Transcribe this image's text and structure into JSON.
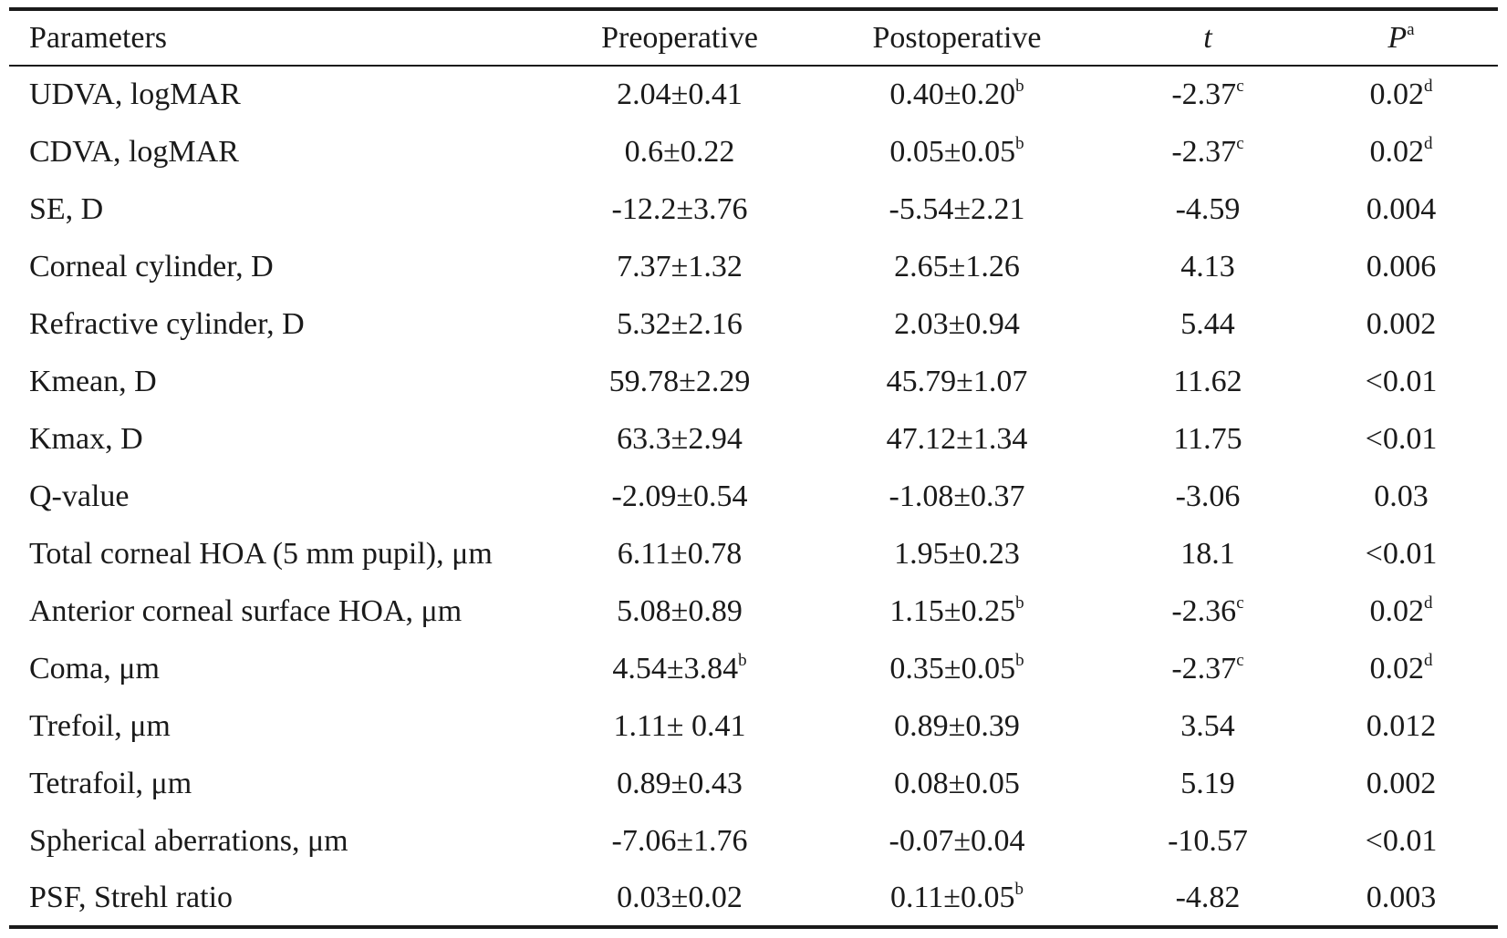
{
  "table": {
    "headers": [
      {
        "text": "Parameters",
        "sup": ""
      },
      {
        "text": "Preoperative",
        "sup": ""
      },
      {
        "text": "Postoperative",
        "sup": ""
      },
      {
        "text": "t",
        "sup": ""
      },
      {
        "text": "P",
        "sup": "a"
      }
    ],
    "rows": [
      {
        "param": "UDVA, logMAR",
        "pre": "2.04±0.41",
        "pre_sup": "",
        "post": "0.40±0.20",
        "post_sup": "b",
        "t": "-2.37",
        "t_sup": "c",
        "p": "0.02",
        "p_sup": "d"
      },
      {
        "param": "CDVA, logMAR",
        "pre": "0.6±0.22",
        "pre_sup": "",
        "post": "0.05±0.05",
        "post_sup": "b",
        "t": "-2.37",
        "t_sup": "c",
        "p": "0.02",
        "p_sup": "d"
      },
      {
        "param": "SE, D",
        "pre": "-12.2±3.76",
        "pre_sup": "",
        "post": "-5.54±2.21",
        "post_sup": "",
        "t": "-4.59",
        "t_sup": "",
        "p": "0.004",
        "p_sup": ""
      },
      {
        "param": "Corneal cylinder, D",
        "pre": "7.37±1.32",
        "pre_sup": "",
        "post": "2.65±1.26",
        "post_sup": "",
        "t": "4.13",
        "t_sup": "",
        "p": "0.006",
        "p_sup": ""
      },
      {
        "param": "Refractive cylinder, D",
        "pre": "5.32±2.16",
        "pre_sup": "",
        "post": "2.03±0.94",
        "post_sup": "",
        "t": "5.44",
        "t_sup": "",
        "p": "0.002",
        "p_sup": ""
      },
      {
        "param": "Kmean, D",
        "pre": "59.78±2.29",
        "pre_sup": "",
        "post": "45.79±1.07",
        "post_sup": "",
        "t": "11.62",
        "t_sup": "",
        "p": "<0.01",
        "p_sup": ""
      },
      {
        "param": "Kmax, D",
        "pre": "63.3±2.94",
        "pre_sup": "",
        "post": "47.12±1.34",
        "post_sup": "",
        "t": "11.75",
        "t_sup": "",
        "p": "<0.01",
        "p_sup": ""
      },
      {
        "param": "Q-value",
        "pre": "-2.09±0.54",
        "pre_sup": "",
        "post": "-1.08±0.37",
        "post_sup": "",
        "t": "-3.06",
        "t_sup": "",
        "p": "0.03",
        "p_sup": ""
      },
      {
        "param": "Total corneal HOA (5 mm pupil), μm",
        "pre": "6.11±0.78",
        "pre_sup": "",
        "post": "1.95±0.23",
        "post_sup": "",
        "t": "18.1",
        "t_sup": "",
        "p": "<0.01",
        "p_sup": ""
      },
      {
        "param": "Anterior corneal surface HOA, μm",
        "pre": "5.08±0.89",
        "pre_sup": "",
        "post": "1.15±0.25",
        "post_sup": "b",
        "t": "-2.36",
        "t_sup": "c",
        "p": "0.02",
        "p_sup": "d"
      },
      {
        "param": "Coma, μm",
        "pre": "4.54±3.84",
        "pre_sup": "b",
        "post": "0.35±0.05",
        "post_sup": "b",
        "t": "-2.37",
        "t_sup": "c",
        "p": "0.02",
        "p_sup": "d"
      },
      {
        "param": "Trefoil, μm",
        "pre": "1.11± 0.41",
        "pre_sup": "",
        "post": "0.89±0.39",
        "post_sup": "",
        "t": "3.54",
        "t_sup": "",
        "p": "0.012",
        "p_sup": ""
      },
      {
        "param": "Tetrafoil, μm",
        "pre": "0.89±0.43",
        "pre_sup": "",
        "post": "0.08±0.05",
        "post_sup": "",
        "t": "5.19",
        "t_sup": "",
        "p": "0.002",
        "p_sup": ""
      },
      {
        "param": "Spherical aberrations, μm",
        "pre": "-7.06±1.76",
        "pre_sup": "",
        "post": "-0.07±0.04",
        "post_sup": "",
        "t": "-10.57",
        "t_sup": "",
        "p": "<0.01",
        "p_sup": ""
      },
      {
        "param": "PSF, Strehl ratio",
        "pre": "0.03±0.02",
        "pre_sup": "",
        "post": "0.11±0.05",
        "post_sup": "b",
        "t": "-4.82",
        "t_sup": "",
        "p": "0.003",
        "p_sup": ""
      }
    ]
  }
}
